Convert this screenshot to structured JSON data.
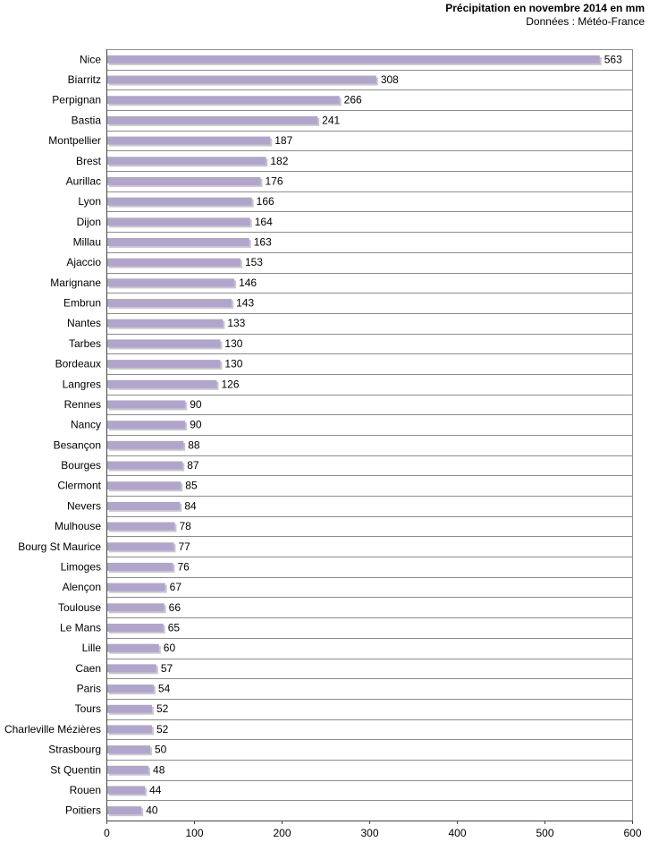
{
  "chart_data": {
    "type": "bar",
    "orientation": "horizontal",
    "title": "Précipitation en novembre 2014 en mm",
    "subtitle": "Données : Météo-France",
    "categories": [
      "Nice",
      "Biarritz",
      "Perpignan",
      "Bastia",
      "Montpellier",
      "Brest",
      "Aurillac",
      "Lyon",
      "Dijon",
      "Millau",
      "Ajaccio",
      "Marignane",
      "Embrun",
      "Nantes",
      "Tarbes",
      "Bordeaux",
      "Langres",
      "Rennes",
      "Nancy",
      "Besançon",
      "Bourges",
      "Clermont",
      "Nevers",
      "Mulhouse",
      "Bourg St Maurice",
      "Limoges",
      "Alençon",
      "Toulouse",
      "Le Mans",
      "Lille",
      "Caen",
      "Paris",
      "Tours",
      "Charleville Mézières",
      "Strasbourg",
      "St Quentin",
      "Rouen",
      "Poitiers"
    ],
    "values": [
      563,
      308,
      266,
      241,
      187,
      182,
      176,
      166,
      164,
      163,
      153,
      146,
      143,
      133,
      130,
      130,
      126,
      90,
      90,
      88,
      87,
      85,
      84,
      78,
      77,
      76,
      67,
      66,
      65,
      60,
      57,
      54,
      52,
      52,
      50,
      48,
      44,
      40
    ],
    "xlim": [
      0,
      600
    ],
    "xticks": [
      0,
      100,
      200,
      300,
      400,
      500,
      600
    ],
    "xlabel": "",
    "ylabel": "",
    "grid": true,
    "legend": "none",
    "colors": {
      "bar": "#b2a5cb",
      "bar_shadow": "#c8c8c8",
      "grid": "#8c8c8c",
      "axis": "#444444"
    }
  }
}
